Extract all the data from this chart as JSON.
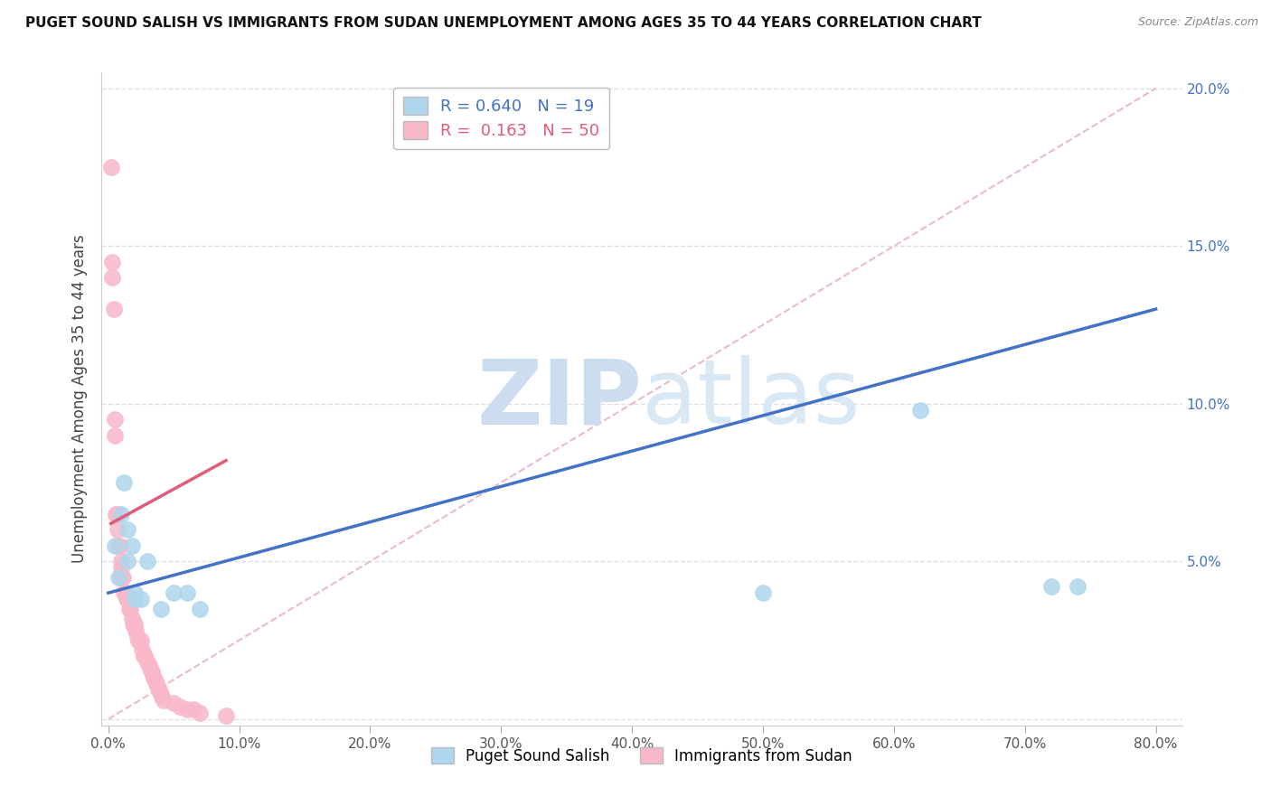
{
  "title": "PUGET SOUND SALISH VS IMMIGRANTS FROM SUDAN UNEMPLOYMENT AMONG AGES 35 TO 44 YEARS CORRELATION CHART",
  "source": "Source: ZipAtlas.com",
  "ylabel": "Unemployment Among Ages 35 to 44 years",
  "xlim": [
    -0.005,
    0.82
  ],
  "ylim": [
    -0.002,
    0.205
  ],
  "xticks": [
    0.0,
    0.1,
    0.2,
    0.3,
    0.4,
    0.5,
    0.6,
    0.7,
    0.8
  ],
  "yticks": [
    0.0,
    0.05,
    0.1,
    0.15,
    0.2
  ],
  "xtick_labels": [
    "0.0%",
    "10.0%",
    "20.0%",
    "30.0%",
    "40.0%",
    "50.0%",
    "60.0%",
    "70.0%",
    "80.0%"
  ],
  "right_ytick_labels": [
    "",
    "5.0%",
    "10.0%",
    "15.0%",
    "20.0%"
  ],
  "blue_scatter_x": [
    0.005,
    0.008,
    0.01,
    0.012,
    0.015,
    0.015,
    0.018,
    0.02,
    0.02,
    0.025,
    0.03,
    0.04,
    0.05,
    0.06,
    0.07,
    0.5,
    0.62,
    0.72,
    0.74
  ],
  "blue_scatter_y": [
    0.055,
    0.045,
    0.065,
    0.075,
    0.05,
    0.06,
    0.055,
    0.04,
    0.038,
    0.038,
    0.05,
    0.035,
    0.04,
    0.04,
    0.035,
    0.04,
    0.098,
    0.042,
    0.042
  ],
  "pink_scatter_x": [
    0.002,
    0.003,
    0.003,
    0.004,
    0.005,
    0.005,
    0.006,
    0.007,
    0.007,
    0.008,
    0.009,
    0.01,
    0.01,
    0.01,
    0.011,
    0.012,
    0.013,
    0.014,
    0.015,
    0.016,
    0.017,
    0.018,
    0.019,
    0.02,
    0.021,
    0.022,
    0.023,
    0.025,
    0.026,
    0.027,
    0.028,
    0.03,
    0.031,
    0.032,
    0.033,
    0.034,
    0.035,
    0.036,
    0.037,
    0.038,
    0.039,
    0.04,
    0.041,
    0.042,
    0.05,
    0.055,
    0.06,
    0.065,
    0.07,
    0.09
  ],
  "pink_scatter_y": [
    0.175,
    0.145,
    0.14,
    0.13,
    0.095,
    0.09,
    0.065,
    0.065,
    0.06,
    0.055,
    0.055,
    0.05,
    0.048,
    0.045,
    0.045,
    0.04,
    0.04,
    0.038,
    0.038,
    0.035,
    0.035,
    0.032,
    0.03,
    0.03,
    0.028,
    0.026,
    0.025,
    0.025,
    0.022,
    0.02,
    0.02,
    0.018,
    0.017,
    0.016,
    0.015,
    0.014,
    0.013,
    0.012,
    0.011,
    0.01,
    0.009,
    0.008,
    0.007,
    0.006,
    0.005,
    0.004,
    0.003,
    0.003,
    0.002,
    0.001
  ],
  "blue_color": "#aed6ec",
  "pink_color": "#f9b8c8",
  "blue_line_color": "#4472c4",
  "pink_line_color": "#e05c7a",
  "diag_line_color": "#e8b4c0",
  "blue_R": 0.64,
  "blue_N": 19,
  "pink_R": 0.163,
  "pink_N": 50,
  "watermark_zip": "ZIP",
  "watermark_atlas": "atlas",
  "background_color": "#ffffff",
  "legend_label_blue": "Puget Sound Salish",
  "legend_label_pink": "Immigrants from Sudan",
  "blue_line_x": [
    0.0,
    0.8
  ],
  "blue_line_y": [
    0.04,
    0.13
  ],
  "pink_line_x": [
    0.002,
    0.09
  ],
  "pink_line_y": [
    0.062,
    0.082
  ]
}
